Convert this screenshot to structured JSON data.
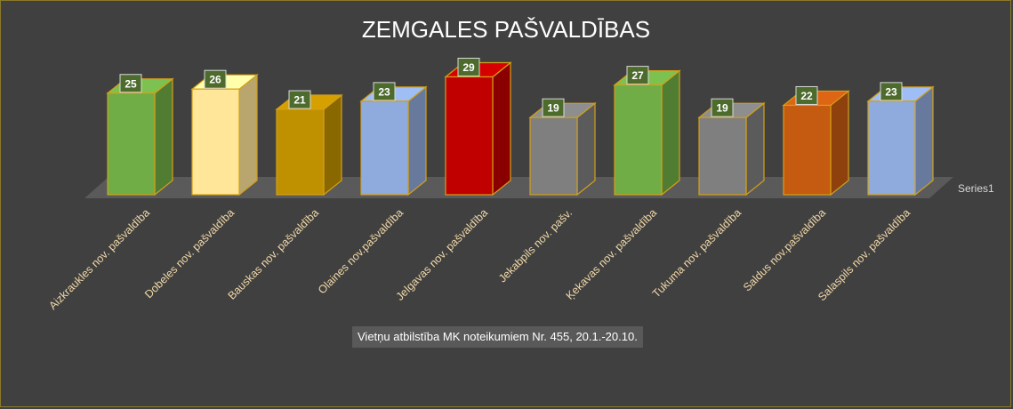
{
  "chart_data": {
    "type": "bar",
    "title": "ZEMGALES PAŠVALDĪBAS",
    "categories": [
      "Aizkraukles nov. pašvaldība",
      "Dobeles nov.  pašvaldība",
      "Bauskas nov. pašvaldība",
      "Olaines nov.pašvaldība",
      "Jelgavas nov. pašvaldība",
      "Jekabpils nov. pašv.",
      "Ķekavas nov. pašvaldība",
      "Tukuma nov. pašvaldība",
      "Saldus nov.pašvaldība",
      "Salaspils nov. pašvaldība"
    ],
    "series": [
      {
        "name": "Series1",
        "values": [
          25,
          26,
          21,
          23,
          29,
          19,
          27,
          19,
          22,
          23
        ]
      }
    ],
    "bar_colors": [
      "#70ad47",
      "#ffe699",
      "#bf9000",
      "#8faadc",
      "#c00000",
      "#7f7f7f",
      "#70ad47",
      "#7f7f7f",
      "#c55a11",
      "#8faadc"
    ],
    "bar_edge_color": "#d4a017",
    "data_labels": true,
    "annotation": "Vietņu atbilstība MK noteikumiem Nr. 455, 20.1.-20.10.",
    "grid": false,
    "legend": "none",
    "style": "3d-column"
  },
  "colors": {
    "background": "#404040",
    "floor": "#5a5a5a",
    "label_box": "#4e6b2e"
  }
}
